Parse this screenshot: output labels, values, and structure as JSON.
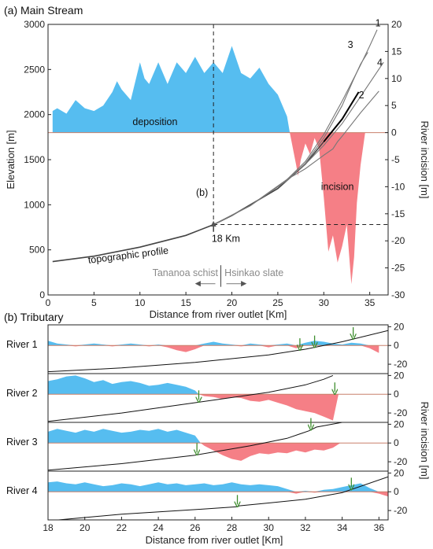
{
  "chart_data": [
    {
      "type": "area",
      "panel_label": "(a) Main Stream",
      "xlabel": "Distance from river outlet [Km]",
      "ylabel": "Elevation [m]",
      "ylabel_right": "River incision [m]",
      "xlim": [
        0,
        37
      ],
      "ylim": [
        0,
        3000
      ],
      "ylim_right": [
        -30,
        20
      ],
      "x_ticks": [
        "0",
        "5",
        "10",
        "15",
        "20",
        "25",
        "30",
        "35"
      ],
      "y_ticks": [
        "0",
        "500",
        "1000",
        "1500",
        "2000",
        "2500",
        "3000"
      ],
      "y_ticks_right": [
        "-30",
        "-25",
        "-20",
        "-15",
        "-10",
        "-5",
        "0",
        "5",
        "10",
        "15",
        "20"
      ],
      "colors": {
        "deposition": "#56bdf0",
        "incision": "#f57f86",
        "profile": "#444444"
      },
      "series": [
        {
          "name": "deposition",
          "x": [
            0.5,
            1,
            2,
            3,
            4,
            5,
            6,
            7,
            7.5,
            8,
            9,
            10,
            10.5,
            11,
            12,
            13,
            14,
            15,
            16,
            17,
            18,
            18.5,
            19,
            20,
            21,
            22,
            23,
            24,
            25,
            26,
            26.3
          ],
          "y": [
            4,
            4.5,
            3.5,
            6,
            4.5,
            4,
            5,
            7.5,
            9.5,
            8,
            6,
            13,
            10,
            9,
            13,
            9,
            13,
            11,
            14,
            11,
            13,
            12,
            11,
            16,
            11,
            10,
            12,
            9,
            7,
            3,
            0
          ]
        },
        {
          "name": "incision",
          "x": [
            26.3,
            27,
            27.2,
            27.5,
            28,
            28.5,
            29,
            29.5,
            30,
            30.5,
            31,
            31.5,
            32,
            32.5,
            33,
            33.3,
            33.6,
            34,
            34.5
          ],
          "y": [
            0,
            -6,
            -8,
            -5,
            -2,
            -4,
            -1,
            -3,
            -12,
            -22,
            -19,
            -24,
            -21,
            -17,
            -28,
            -23,
            -13,
            -6,
            0
          ]
        }
      ],
      "profiles": [
        {
          "name": "topographic profile",
          "x": [
            0.5,
            5,
            10,
            15,
            18,
            20,
            25,
            28,
            30,
            32,
            33.8
          ],
          "y": [
            370,
            430,
            530,
            660,
            780,
            880,
            1180,
            1450,
            1700,
            1950,
            2250
          ]
        },
        {
          "name": "1",
          "x": [
            18,
            22,
            26,
            28,
            30,
            32,
            34,
            35,
            35.8
          ],
          "y": [
            780,
            990,
            1280,
            1480,
            1780,
            2150,
            2550,
            2760,
            2940
          ]
        },
        {
          "name": "2",
          "x": [
            18,
            22,
            26,
            28,
            30,
            31,
            31.5,
            32,
            34,
            36
          ],
          "y": [
            780,
            990,
            1280,
            1400,
            1550,
            1620,
            1700,
            1760,
            2020,
            2260
          ]
        },
        {
          "name": "3",
          "x": [
            18,
            22,
            26,
            28,
            30,
            32,
            33.2,
            34,
            34.8
          ],
          "y": [
            780,
            990,
            1270,
            1460,
            1740,
            2100,
            2380,
            2560,
            2690
          ]
        },
        {
          "name": "4",
          "x": [
            18,
            22,
            26,
            28,
            30,
            32,
            34,
            36.5
          ],
          "y": [
            780,
            990,
            1280,
            1450,
            1660,
            1900,
            2200,
            2580
          ]
        }
      ],
      "annotations": {
        "deposition": "deposition",
        "incision": "incision",
        "topographic_profile": "topographic profile",
        "b_marker": "(b)",
        "km18": "18 Km",
        "left_unit": "Tananoa schist",
        "right_unit": "Hsinkao slate",
        "river_labels": [
          "1",
          "2",
          "3",
          "4"
        ]
      }
    },
    {
      "type": "area",
      "panel_label": "(b) Tributary",
      "xlabel": "Distance from river outlet [Km]",
      "ylabel_right": "River incision [m]",
      "xlim": [
        18,
        36.5
      ],
      "ylim": [
        -30,
        22
      ],
      "x_ticks": [
        "18",
        "20",
        "22",
        "24",
        "26",
        "28",
        "30",
        "32",
        "34",
        "36"
      ],
      "y_ticks_right": [
        "20",
        "0",
        "-20"
      ],
      "subplots": [
        {
          "name": "River 1",
          "x": [
            18,
            18.5,
            19,
            19.5,
            20,
            20.5,
            21,
            21.5,
            22,
            22.5,
            23,
            23.5,
            24,
            24.5,
            25,
            25.5,
            26,
            26.5,
            27,
            27.5,
            28,
            28.5,
            29,
            29.5,
            30,
            30.5,
            31,
            31.5,
            32,
            32.5,
            33,
            33.5,
            34,
            34.5,
            35,
            35.5,
            36
          ],
          "y": [
            5,
            2,
            1,
            -1,
            1,
            2,
            1,
            -1,
            1,
            2,
            1,
            -1,
            1,
            -2,
            -5,
            -7,
            -4,
            2,
            4,
            2,
            1,
            -1,
            2,
            1,
            -2,
            1,
            2,
            -3,
            3,
            5,
            4,
            2,
            1,
            3,
            2,
            -3,
            -8
          ],
          "profile": {
            "x": [
              18,
              22,
              26,
              30,
              32,
              34,
              36.5
            ],
            "y": [
              -28,
              -24,
              -18,
              -10,
              -4,
              4,
              16
            ]
          },
          "arrows_x": [
            31.7,
            32.5,
            34.6
          ]
        },
        {
          "name": "River 2",
          "x": [
            18,
            18.5,
            19,
            19.5,
            20,
            20.5,
            21,
            21.5,
            22,
            22.5,
            23,
            23.5,
            24,
            24.5,
            25,
            25.5,
            26,
            26.2,
            26.5,
            27,
            27.5,
            28,
            28.5,
            29,
            29.5,
            30,
            30.5,
            31,
            31.5,
            32,
            32.5,
            33,
            33.5,
            33.8
          ],
          "y": [
            14,
            16,
            19,
            20,
            17,
            13,
            15,
            11,
            13,
            14,
            12,
            9,
            10,
            12,
            10,
            8,
            4,
            0,
            -2,
            -3,
            -5,
            -3,
            -4,
            -7,
            -8,
            -6,
            -9,
            -12,
            -16,
            -18,
            -20,
            -24,
            -28,
            0
          ],
          "profile": {
            "x": [
              18,
              22,
              26,
              30,
              32,
              33,
              33.5
            ],
            "y": [
              -29,
              -20,
              -9,
              2,
              10,
              16,
              20
            ]
          },
          "arrows_x": [
            26.2,
            33.6
          ]
        },
        {
          "name": "River 3",
          "x": [
            18,
            18.5,
            19,
            19.5,
            20,
            20.5,
            21,
            21.5,
            22,
            22.5,
            23,
            23.5,
            24,
            24.5,
            25,
            25.5,
            26,
            26.3,
            26.5,
            27,
            27.5,
            28,
            28.5,
            29,
            29.5,
            30,
            30.5,
            31,
            31.5,
            32,
            32.5,
            33,
            33.5,
            33.9
          ],
          "y": [
            12,
            15,
            13,
            11,
            14,
            12,
            15,
            13,
            11,
            12,
            14,
            13,
            15,
            12,
            14,
            11,
            8,
            0,
            -3,
            -8,
            -13,
            -17,
            -19,
            -14,
            -11,
            -12,
            -10,
            -11,
            -8,
            -10,
            -7,
            -8,
            -5,
            0
          ],
          "profile": {
            "x": [
              18,
              22,
              26,
              29,
              31,
              32.2,
              32.6,
              34
            ],
            "y": [
              -29,
              -22,
              -13,
              -3,
              5,
              13,
              17,
              22
            ]
          },
          "arrows_x": [
            26.1,
            32.3
          ]
        },
        {
          "name": "River 4",
          "x": [
            18,
            18.5,
            19,
            19.5,
            20,
            20.5,
            21,
            21.5,
            22,
            22.5,
            23,
            23.5,
            24,
            24.5,
            25,
            25.5,
            26,
            26.5,
            27,
            27.5,
            28,
            28.5,
            29,
            29.5,
            30,
            30.5,
            31,
            31.5,
            32,
            32.5,
            33,
            33.5,
            34,
            34.5,
            35,
            35.5,
            36,
            36.5
          ],
          "y": [
            10,
            11,
            9,
            8,
            10,
            8,
            6,
            7,
            9,
            8,
            6,
            8,
            10,
            8,
            9,
            7,
            8,
            9,
            7,
            8,
            10,
            8,
            7,
            8,
            7,
            6,
            3,
            -2,
            1,
            -1,
            2,
            3,
            5,
            7,
            9,
            4,
            -2,
            -5
          ],
          "profile": {
            "x": [
              18,
              22,
              26,
              28.3,
              28.4,
              30,
              32,
              34,
              36.5
            ],
            "y": [
              -31,
              -24,
              -19,
              -16,
              -15,
              -12,
              -8,
              -1,
              16
            ]
          },
          "arrows_x": [
            28.3,
            34.5
          ]
        }
      ]
    }
  ]
}
